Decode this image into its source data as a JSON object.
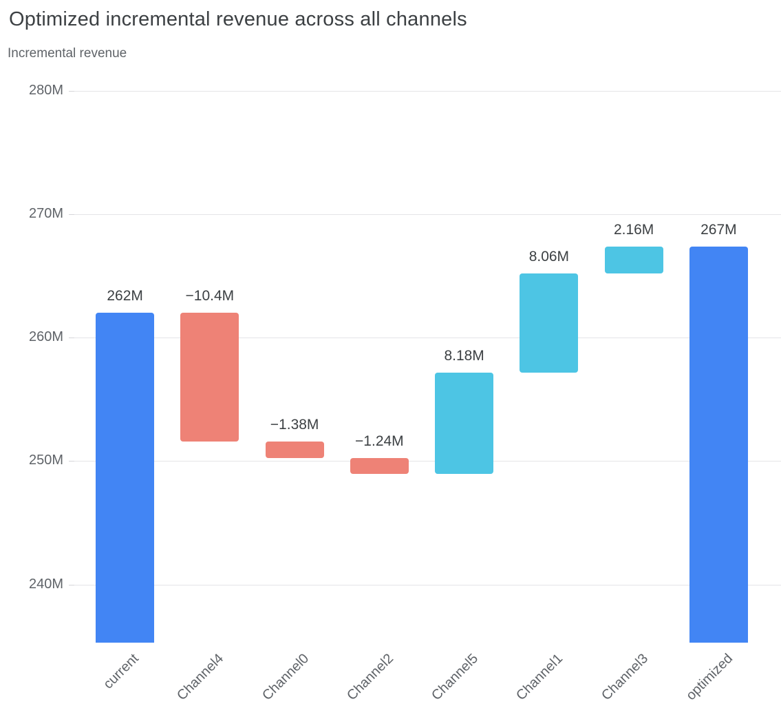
{
  "chart_data": {
    "type": "bar",
    "subtype": "waterfall",
    "title": "Optimized incremental revenue across all channels",
    "subtitle": "Incremental revenue",
    "xlabel": "",
    "ylabel": "Incremental revenue",
    "grid": true,
    "legend": "none",
    "categories": [
      "current",
      "Channel4",
      "Channel0",
      "Channel2",
      "Channel5",
      "Channel1",
      "Channel3",
      "optimized"
    ],
    "bars": [
      {
        "category": "current",
        "label": "262M",
        "value": 262,
        "kind": "total",
        "start": 235.3,
        "end": 262
      },
      {
        "category": "Channel4",
        "label": "−10.4M",
        "value": -10.4,
        "kind": "decrease",
        "start": 262,
        "end": 251.6
      },
      {
        "category": "Channel0",
        "label": "−1.38M",
        "value": -1.38,
        "kind": "decrease",
        "start": 251.6,
        "end": 250.22
      },
      {
        "category": "Channel2",
        "label": "−1.24M",
        "value": -1.24,
        "kind": "decrease",
        "start": 250.22,
        "end": 248.98
      },
      {
        "category": "Channel5",
        "label": "8.18M",
        "value": 8.18,
        "kind": "increase",
        "start": 248.98,
        "end": 257.16
      },
      {
        "category": "Channel1",
        "label": "8.06M",
        "value": 8.06,
        "kind": "increase",
        "start": 257.16,
        "end": 265.22
      },
      {
        "category": "Channel3",
        "label": "2.16M",
        "value": 2.16,
        "kind": "increase",
        "start": 265.22,
        "end": 267.38
      },
      {
        "category": "optimized",
        "label": "267M",
        "value": 267,
        "kind": "total",
        "start": 235.3,
        "end": 267.38
      }
    ],
    "y_axis": {
      "ticks": [
        {
          "label": "280M",
          "value": 280
        },
        {
          "label": "270M",
          "value": 270
        },
        {
          "label": "260M",
          "value": 260
        },
        {
          "label": "250M",
          "value": 250
        },
        {
          "label": "240M",
          "value": 240
        }
      ]
    },
    "ylim": [
      235.3,
      281.2
    ],
    "colors": {
      "total": "#4285F4",
      "increase": "#4DC5E4",
      "decrease": "#EE8276",
      "grid": "#E4E4E7",
      "axis_text": "#5F6368",
      "value_label": "#3C4043",
      "title": "#3C4043"
    }
  }
}
